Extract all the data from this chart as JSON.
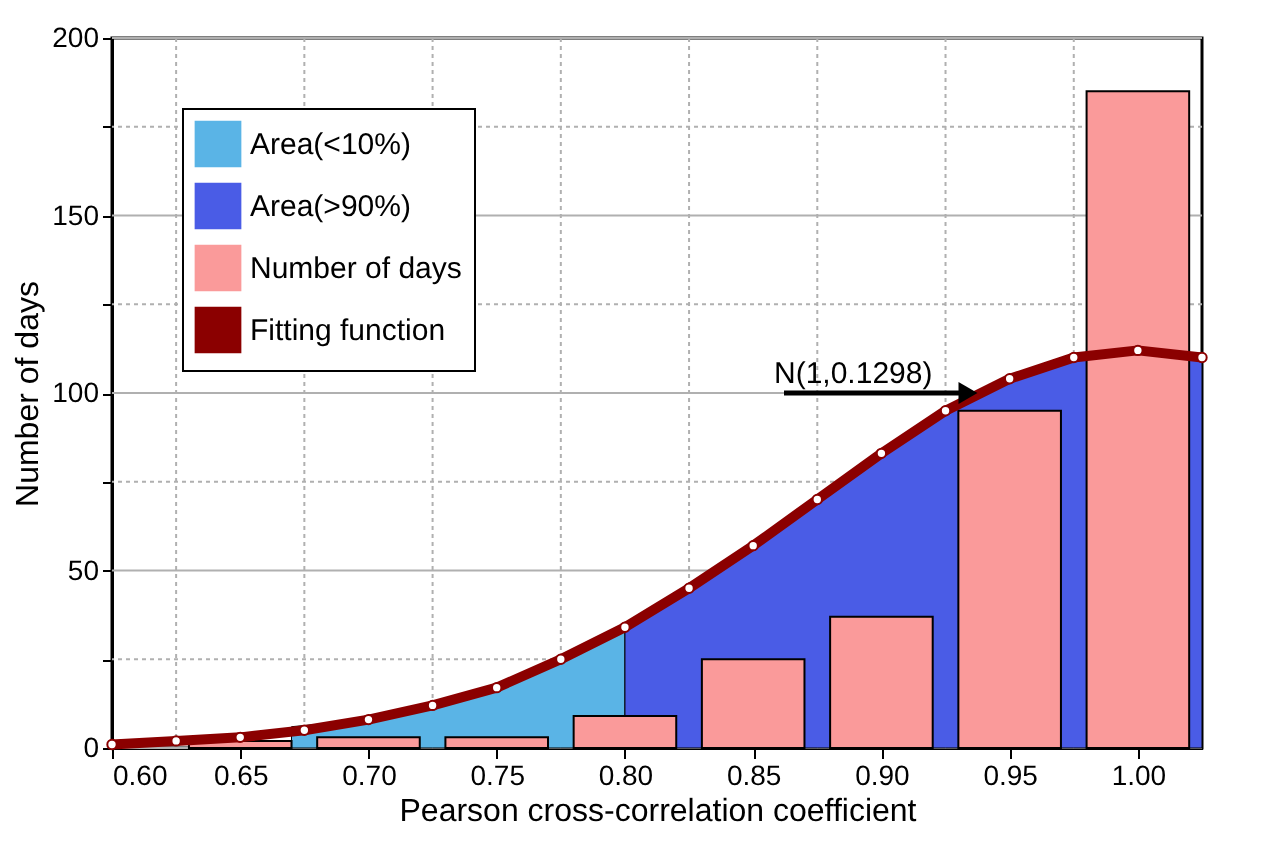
{
  "chart_data": {
    "type": "bar",
    "xlabel": "Pearson cross-correlation coefficient",
    "ylabel": "Number of days",
    "xlim": [
      0.6,
      1.025
    ],
    "ylim": [
      0,
      200
    ],
    "xticks": [
      {
        "value": 0.6,
        "label": "0.60"
      },
      {
        "value": 0.625,
        "label": null
      },
      {
        "value": 0.65,
        "label": "0.65"
      },
      {
        "value": 0.675,
        "label": null
      },
      {
        "value": 0.7,
        "label": "0.70"
      },
      {
        "value": 0.725,
        "label": null
      },
      {
        "value": 0.75,
        "label": "0.75"
      },
      {
        "value": 0.775,
        "label": null
      },
      {
        "value": 0.8,
        "label": "0.80"
      },
      {
        "value": 0.825,
        "label": null
      },
      {
        "value": 0.85,
        "label": "0.85"
      },
      {
        "value": 0.875,
        "label": null
      },
      {
        "value": 0.9,
        "label": "0.90"
      },
      {
        "value": 0.925,
        "label": null
      },
      {
        "value": 0.95,
        "label": "0.95"
      },
      {
        "value": 0.975,
        "label": null
      },
      {
        "value": 1.0,
        "label": "1.00"
      }
    ],
    "yticks": [
      0,
      {
        "value": 25,
        "label": null
      },
      50,
      {
        "value": 75,
        "label": null
      },
      100,
      {
        "value": 125,
        "label": null
      },
      150,
      {
        "value": 175,
        "label": null
      },
      200
    ],
    "grid": true,
    "legend": "top left",
    "series": [
      {
        "name": "Area(<10%)",
        "type": "area",
        "color": "#5ab4e6",
        "x": [
          0.67,
          0.7,
          0.725,
          0.75,
          0.775,
          0.8
        ],
        "values": [
          6,
          8,
          12,
          17,
          25,
          34
        ]
      },
      {
        "name": "Area(>90%)",
        "type": "area",
        "color": "#4a5ce6",
        "x": [
          0.8,
          0.825,
          0.85,
          0.875,
          0.9,
          0.925,
          0.95,
          0.975,
          1.025
        ],
        "values": [
          34,
          45,
          57,
          70,
          83,
          95,
          104,
          110,
          110
        ]
      },
      {
        "name": "Number of days",
        "color": "#fa9a9a",
        "x": [
          0.65,
          0.7,
          0.75,
          0.8,
          0.85,
          0.9,
          0.95,
          1.0
        ],
        "values": [
          2,
          3,
          3,
          9,
          25,
          37,
          95,
          185
        ]
      },
      {
        "name": "Fitting function",
        "type": "line",
        "marker": "circle",
        "line_style": "solid",
        "color": "#8b0000",
        "x": [
          0.6,
          0.625,
          0.65,
          0.675,
          0.7,
          0.725,
          0.75,
          0.775,
          0.8,
          0.825,
          0.85,
          0.875,
          0.9,
          0.925,
          0.95,
          0.975,
          1.0,
          1.025
        ],
        "values": [
          1,
          2,
          3,
          5,
          8,
          12,
          17,
          25,
          34,
          45,
          57,
          70,
          83,
          95,
          104,
          110,
          112,
          110
        ]
      }
    ],
    "annotations": [
      {
        "text": "N(1,0.1298)",
        "x": 0.94,
        "y": 100
      }
    ]
  }
}
